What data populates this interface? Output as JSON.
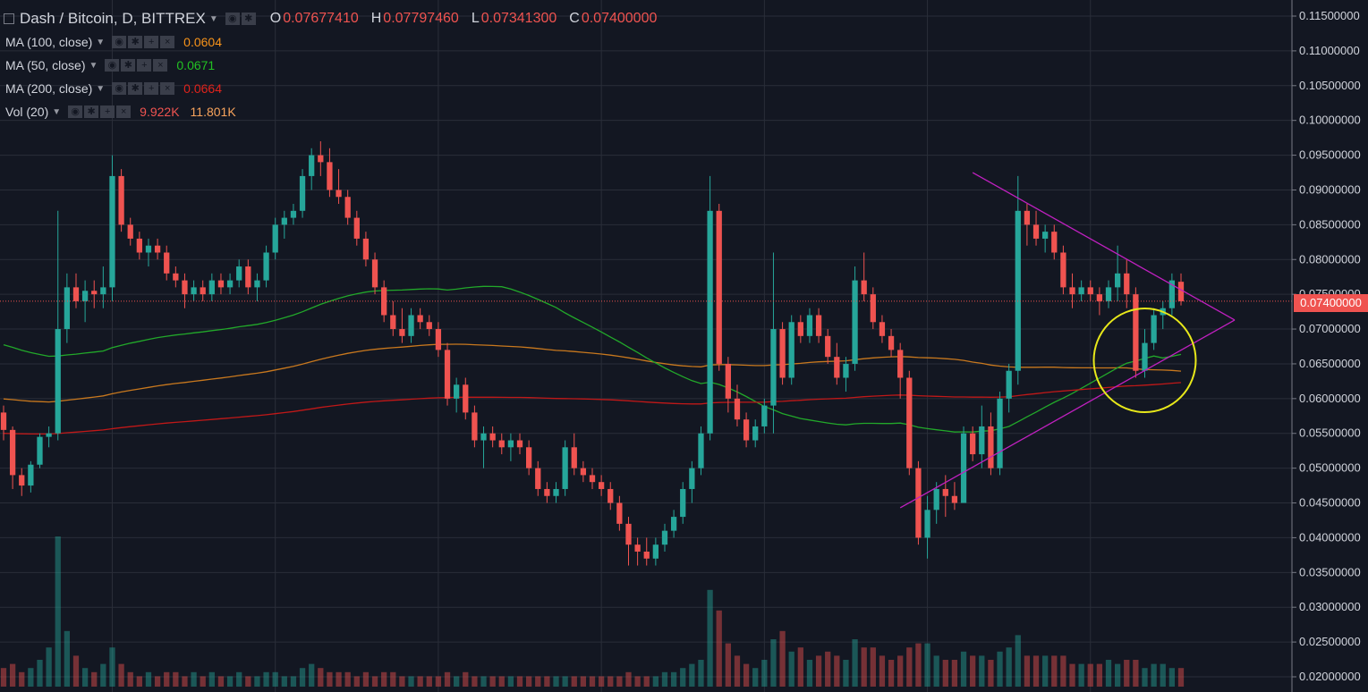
{
  "header": {
    "title": "Dash / Bitcoin, D, BITTREX",
    "o_label": "O",
    "o_value": "0.07677410",
    "h_label": "H",
    "h_value": "0.07797460",
    "l_label": "L",
    "l_value": "0.07341300",
    "c_label": "C",
    "c_value": "0.07400000"
  },
  "indicators": [
    {
      "label": "MA (100, close)",
      "value": "0.0604",
      "color": "#f7931a"
    },
    {
      "label": "MA (50, close)",
      "value": "0.0671",
      "color": "#22c122"
    },
    {
      "label": "MA (200, close)",
      "value": "0.0664",
      "color": "#e0231c"
    },
    {
      "label": "Vol (20)",
      "value": "9.922K",
      "value2": "11.801K",
      "color": "#ef5350",
      "color2": "#f7a35c"
    }
  ],
  "current_price_label": "0.07400000",
  "colors": {
    "up": "#26a69a",
    "down": "#ef5350",
    "bg": "#131722",
    "grid": "#2a2e39",
    "triangle": "#c020c0",
    "circle": "#e8e81a",
    "ma100": "#c8781e",
    "ma50": "#22a82a",
    "ma200": "#c01818"
  },
  "chart_data": {
    "type": "candlestick",
    "title": "Dash / Bitcoin, D, BITTREX",
    "ylim": [
      0.019,
      0.1165
    ],
    "y_ticks": [
      "0.11500000",
      "0.11000000",
      "0.10500000",
      "0.10000000",
      "0.09500000",
      "0.09000000",
      "0.08500000",
      "0.08000000",
      "0.07500000",
      "0.07000000",
      "0.06500000",
      "0.06000000",
      "0.05500000",
      "0.05000000",
      "0.04500000",
      "0.04000000",
      "0.03500000",
      "0.03000000",
      "0.02500000",
      "0.02000000"
    ],
    "grid": true,
    "candles": [
      [
        0.058,
        0.059,
        0.054,
        0.0555
      ],
      [
        0.0555,
        0.056,
        0.047,
        0.049
      ],
      [
        0.049,
        0.05,
        0.046,
        0.0475
      ],
      [
        0.0475,
        0.051,
        0.0465,
        0.0505
      ],
      [
        0.0505,
        0.055,
        0.05,
        0.0545
      ],
      [
        0.0545,
        0.056,
        0.053,
        0.055
      ],
      [
        0.055,
        0.087,
        0.054,
        0.07
      ],
      [
        0.07,
        0.078,
        0.068,
        0.076
      ],
      [
        0.076,
        0.078,
        0.073,
        0.074
      ],
      [
        0.074,
        0.077,
        0.071,
        0.0755
      ],
      [
        0.0755,
        0.077,
        0.073,
        0.075
      ],
      [
        0.075,
        0.079,
        0.073,
        0.076
      ],
      [
        0.076,
        0.095,
        0.074,
        0.092
      ],
      [
        0.092,
        0.093,
        0.084,
        0.085
      ],
      [
        0.085,
        0.086,
        0.082,
        0.083
      ],
      [
        0.083,
        0.084,
        0.08,
        0.081
      ],
      [
        0.081,
        0.083,
        0.079,
        0.082
      ],
      [
        0.082,
        0.083,
        0.08,
        0.081
      ],
      [
        0.081,
        0.082,
        0.077,
        0.078
      ],
      [
        0.078,
        0.079,
        0.076,
        0.077
      ],
      [
        0.077,
        0.078,
        0.073,
        0.075
      ],
      [
        0.075,
        0.077,
        0.074,
        0.076
      ],
      [
        0.076,
        0.077,
        0.074,
        0.075
      ],
      [
        0.075,
        0.078,
        0.074,
        0.077
      ],
      [
        0.077,
        0.078,
        0.075,
        0.076
      ],
      [
        0.076,
        0.078,
        0.075,
        0.077
      ],
      [
        0.077,
        0.08,
        0.076,
        0.079
      ],
      [
        0.079,
        0.08,
        0.075,
        0.076
      ],
      [
        0.076,
        0.078,
        0.074,
        0.077
      ],
      [
        0.077,
        0.082,
        0.076,
        0.081
      ],
      [
        0.081,
        0.086,
        0.08,
        0.085
      ],
      [
        0.085,
        0.087,
        0.083,
        0.086
      ],
      [
        0.086,
        0.088,
        0.085,
        0.087
      ],
      [
        0.087,
        0.093,
        0.086,
        0.092
      ],
      [
        0.092,
        0.096,
        0.09,
        0.095
      ],
      [
        0.095,
        0.097,
        0.092,
        0.094
      ],
      [
        0.094,
        0.096,
        0.089,
        0.09
      ],
      [
        0.09,
        0.093,
        0.088,
        0.089
      ],
      [
        0.089,
        0.09,
        0.085,
        0.086
      ],
      [
        0.086,
        0.087,
        0.082,
        0.083
      ],
      [
        0.083,
        0.084,
        0.079,
        0.08
      ],
      [
        0.08,
        0.081,
        0.075,
        0.076
      ],
      [
        0.076,
        0.077,
        0.071,
        0.072
      ],
      [
        0.072,
        0.074,
        0.069,
        0.07
      ],
      [
        0.07,
        0.073,
        0.068,
        0.069
      ],
      [
        0.069,
        0.073,
        0.068,
        0.072
      ],
      [
        0.072,
        0.073,
        0.07,
        0.071
      ],
      [
        0.071,
        0.072,
        0.069,
        0.07
      ],
      [
        0.07,
        0.071,
        0.066,
        0.067
      ],
      [
        0.067,
        0.068,
        0.059,
        0.06
      ],
      [
        0.06,
        0.063,
        0.058,
        0.062
      ],
      [
        0.062,
        0.063,
        0.057,
        0.058
      ],
      [
        0.058,
        0.059,
        0.053,
        0.054
      ],
      [
        0.054,
        0.056,
        0.05,
        0.055
      ],
      [
        0.055,
        0.056,
        0.053,
        0.054
      ],
      [
        0.054,
        0.055,
        0.052,
        0.053
      ],
      [
        0.053,
        0.055,
        0.051,
        0.054
      ],
      [
        0.054,
        0.055,
        0.052,
        0.053
      ],
      [
        0.053,
        0.054,
        0.049,
        0.05
      ],
      [
        0.05,
        0.051,
        0.046,
        0.047
      ],
      [
        0.047,
        0.048,
        0.045,
        0.046
      ],
      [
        0.046,
        0.048,
        0.045,
        0.047
      ],
      [
        0.047,
        0.054,
        0.046,
        0.053
      ],
      [
        0.053,
        0.055,
        0.049,
        0.05
      ],
      [
        0.05,
        0.051,
        0.048,
        0.049
      ],
      [
        0.049,
        0.05,
        0.047,
        0.048
      ],
      [
        0.048,
        0.049,
        0.046,
        0.047
      ],
      [
        0.047,
        0.048,
        0.044,
        0.045
      ],
      [
        0.045,
        0.046,
        0.041,
        0.042
      ],
      [
        0.042,
        0.043,
        0.036,
        0.039
      ],
      [
        0.039,
        0.04,
        0.036,
        0.038
      ],
      [
        0.038,
        0.04,
        0.036,
        0.037
      ],
      [
        0.037,
        0.04,
        0.036,
        0.039
      ],
      [
        0.039,
        0.042,
        0.038,
        0.041
      ],
      [
        0.041,
        0.044,
        0.04,
        0.043
      ],
      [
        0.043,
        0.048,
        0.042,
        0.047
      ],
      [
        0.047,
        0.051,
        0.045,
        0.05
      ],
      [
        0.05,
        0.056,
        0.049,
        0.055
      ],
      [
        0.055,
        0.092,
        0.054,
        0.087
      ],
      [
        0.087,
        0.088,
        0.064,
        0.065
      ],
      [
        0.065,
        0.066,
        0.058,
        0.06
      ],
      [
        0.06,
        0.062,
        0.056,
        0.057
      ],
      [
        0.057,
        0.058,
        0.053,
        0.054
      ],
      [
        0.054,
        0.057,
        0.053,
        0.056
      ],
      [
        0.056,
        0.06,
        0.055,
        0.059
      ],
      [
        0.059,
        0.081,
        0.055,
        0.07
      ],
      [
        0.07,
        0.071,
        0.062,
        0.063
      ],
      [
        0.063,
        0.072,
        0.062,
        0.071
      ],
      [
        0.071,
        0.072,
        0.068,
        0.069
      ],
      [
        0.069,
        0.073,
        0.068,
        0.072
      ],
      [
        0.072,
        0.073,
        0.068,
        0.069
      ],
      [
        0.069,
        0.07,
        0.065,
        0.066
      ],
      [
        0.066,
        0.068,
        0.062,
        0.063
      ],
      [
        0.063,
        0.066,
        0.061,
        0.065
      ],
      [
        0.065,
        0.079,
        0.064,
        0.077
      ],
      [
        0.077,
        0.081,
        0.074,
        0.075
      ],
      [
        0.075,
        0.076,
        0.07,
        0.071
      ],
      [
        0.071,
        0.072,
        0.068,
        0.069
      ],
      [
        0.069,
        0.07,
        0.066,
        0.067
      ],
      [
        0.067,
        0.068,
        0.06,
        0.063
      ],
      [
        0.063,
        0.064,
        0.049,
        0.05
      ],
      [
        0.05,
        0.051,
        0.039,
        0.04
      ],
      [
        0.04,
        0.046,
        0.037,
        0.044
      ],
      [
        0.044,
        0.048,
        0.042,
        0.047
      ],
      [
        0.047,
        0.049,
        0.043,
        0.046
      ],
      [
        0.046,
        0.048,
        0.044,
        0.045
      ],
      [
        0.045,
        0.056,
        0.045,
        0.055
      ],
      [
        0.055,
        0.056,
        0.051,
        0.052
      ],
      [
        0.052,
        0.059,
        0.05,
        0.056
      ],
      [
        0.056,
        0.058,
        0.049,
        0.05
      ],
      [
        0.05,
        0.061,
        0.049,
        0.06
      ],
      [
        0.06,
        0.065,
        0.058,
        0.064
      ],
      [
        0.064,
        0.092,
        0.062,
        0.087
      ],
      [
        0.087,
        0.088,
        0.082,
        0.085
      ],
      [
        0.085,
        0.087,
        0.082,
        0.083
      ],
      [
        0.083,
        0.085,
        0.081,
        0.084
      ],
      [
        0.084,
        0.085,
        0.08,
        0.081
      ],
      [
        0.081,
        0.082,
        0.075,
        0.076
      ],
      [
        0.076,
        0.078,
        0.073,
        0.075
      ],
      [
        0.075,
        0.077,
        0.074,
        0.076
      ],
      [
        0.076,
        0.077,
        0.074,
        0.075
      ],
      [
        0.075,
        0.076,
        0.072,
        0.074
      ],
      [
        0.074,
        0.077,
        0.073,
        0.076
      ],
      [
        0.076,
        0.082,
        0.074,
        0.078
      ],
      [
        0.078,
        0.08,
        0.073,
        0.075
      ],
      [
        0.075,
        0.076,
        0.063,
        0.064
      ],
      [
        0.064,
        0.07,
        0.063,
        0.068
      ],
      [
        0.068,
        0.073,
        0.067,
        0.072
      ],
      [
        0.072,
        0.074,
        0.07,
        0.073
      ],
      [
        0.073,
        0.078,
        0.072,
        0.077
      ],
      [
        0.0768,
        0.078,
        0.0734,
        0.074
      ]
    ],
    "volume": [
      2.3,
      2.4,
      2.2,
      2.3,
      2.5,
      2.8,
      5.5,
      3.2,
      2.6,
      2.3,
      2.2,
      2.4,
      2.8,
      2.4,
      2.2,
      2.1,
      2.2,
      2.1,
      2.2,
      2.2,
      2.1,
      2.2,
      2.1,
      2.2,
      2.1,
      2.1,
      2.2,
      2.1,
      2.1,
      2.2,
      2.2,
      2.1,
      2.1,
      2.3,
      2.4,
      2.3,
      2.2,
      2.2,
      2.2,
      2.1,
      2.2,
      2.1,
      2.2,
      2.2,
      2.1,
      2.1,
      2.1,
      2.1,
      2.1,
      2.2,
      2.1,
      2.2,
      2.1,
      2.1,
      2.1,
      2.1,
      2.1,
      2.1,
      2.1,
      2.1,
      2.1,
      2.1,
      2.1,
      2.1,
      2.1,
      2.1,
      2.1,
      2.1,
      2.1,
      2.2,
      2.1,
      2.1,
      2.1,
      2.2,
      2.2,
      2.3,
      2.4,
      2.5,
      4.2,
      3.7,
      2.9,
      2.6,
      2.4,
      2.3,
      2.5,
      3.0,
      3.2,
      2.7,
      2.8,
      2.5,
      2.6,
      2.7,
      2.6,
      2.5,
      3.0,
      2.8,
      2.8,
      2.6,
      2.5,
      2.6,
      2.8,
      2.9,
      2.9,
      2.6,
      2.5,
      2.5,
      2.7,
      2.6,
      2.6,
      2.5,
      2.7,
      2.8,
      3.1,
      2.6,
      2.6,
      2.6,
      2.6,
      2.6,
      2.4,
      2.4,
      2.4,
      2.4,
      2.5,
      2.4,
      2.5,
      2.5,
      2.3,
      2.4,
      2.4,
      2.3,
      2.3
    ]
  }
}
